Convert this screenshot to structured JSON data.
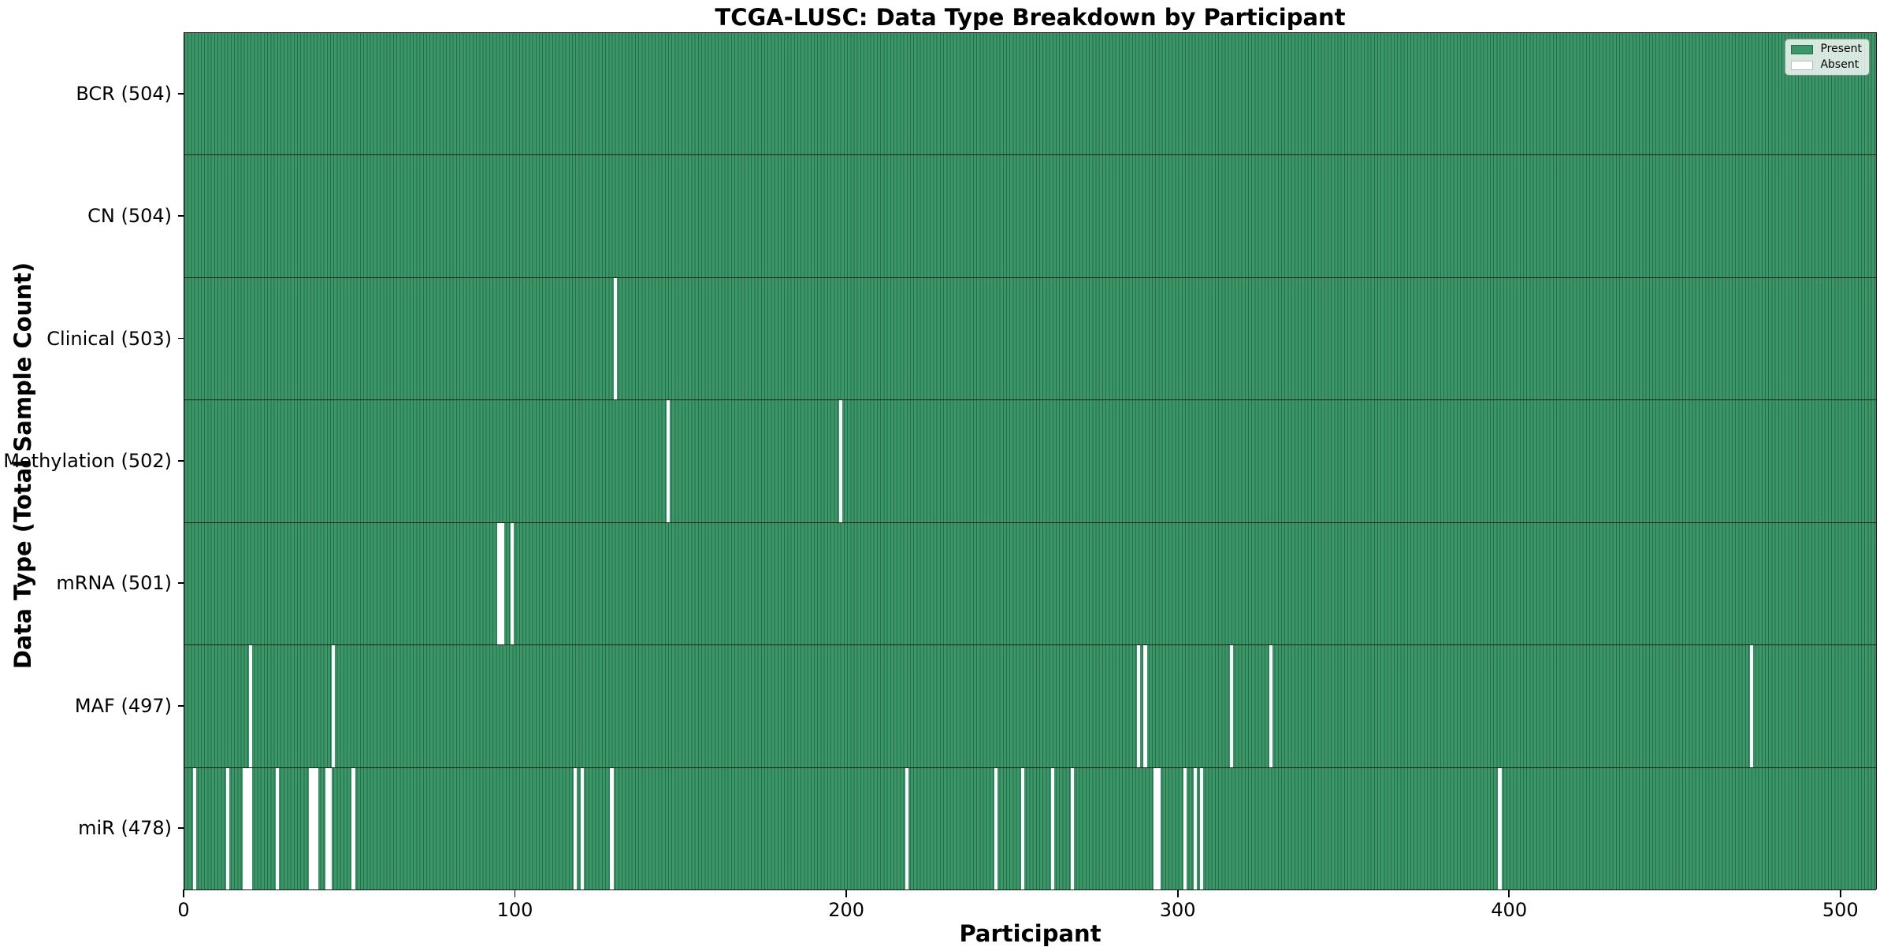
{
  "title": "TCGA-LUSC: Data Type Breakdown by Participant",
  "legend": {
    "present_label": "Present",
    "absent_label": "Absent"
  },
  "colors": {
    "present_fill": "#3a9767",
    "bar_edge": "#2a6b49",
    "absent_fill": "#ffffff",
    "background": "#ffffff",
    "text": "#000000"
  },
  "chart_data": {
    "type": "heatmap",
    "title": "TCGA-LUSC: Data Type Breakdown by Participant",
    "xlabel": "Participant",
    "ylabel": "Data Type (Total Sample Count)",
    "x_ticks": [
      0,
      100,
      200,
      300,
      400,
      500
    ],
    "x_range": [
      0,
      511
    ],
    "n_participants": 504,
    "grid": false,
    "legend_entries": [
      "Present",
      "Absent"
    ],
    "legend_position": "upper right",
    "rows": [
      {
        "label": "BCR (504)",
        "data_type": "BCR",
        "present_count": 504,
        "absent_participants": []
      },
      {
        "label": "CN (504)",
        "data_type": "CN",
        "present_count": 504,
        "absent_participants": []
      },
      {
        "label": "Clinical (503)",
        "data_type": "Clinical",
        "present_count": 503,
        "absent_participants": [
          130
        ]
      },
      {
        "label": "Methylation (502)",
        "data_type": "Methylation",
        "present_count": 502,
        "absent_participants": [
          146,
          198
        ]
      },
      {
        "label": "mRNA (501)",
        "data_type": "mRNA",
        "present_count": 501,
        "absent_participants": [
          95,
          96,
          99
        ]
      },
      {
        "label": "MAF (497)",
        "data_type": "MAF",
        "present_count": 497,
        "absent_participants": [
          20,
          45,
          288,
          290,
          316,
          328,
          473
        ]
      },
      {
        "label": "miR (478)",
        "data_type": "miR",
        "present_count": 478,
        "absent_participants": [
          3,
          13,
          18,
          19,
          20,
          28,
          38,
          39,
          40,
          43,
          44,
          51,
          118,
          120,
          129,
          218,
          245,
          253,
          262,
          268,
          293,
          294,
          302,
          305,
          307,
          397
        ]
      }
    ]
  }
}
